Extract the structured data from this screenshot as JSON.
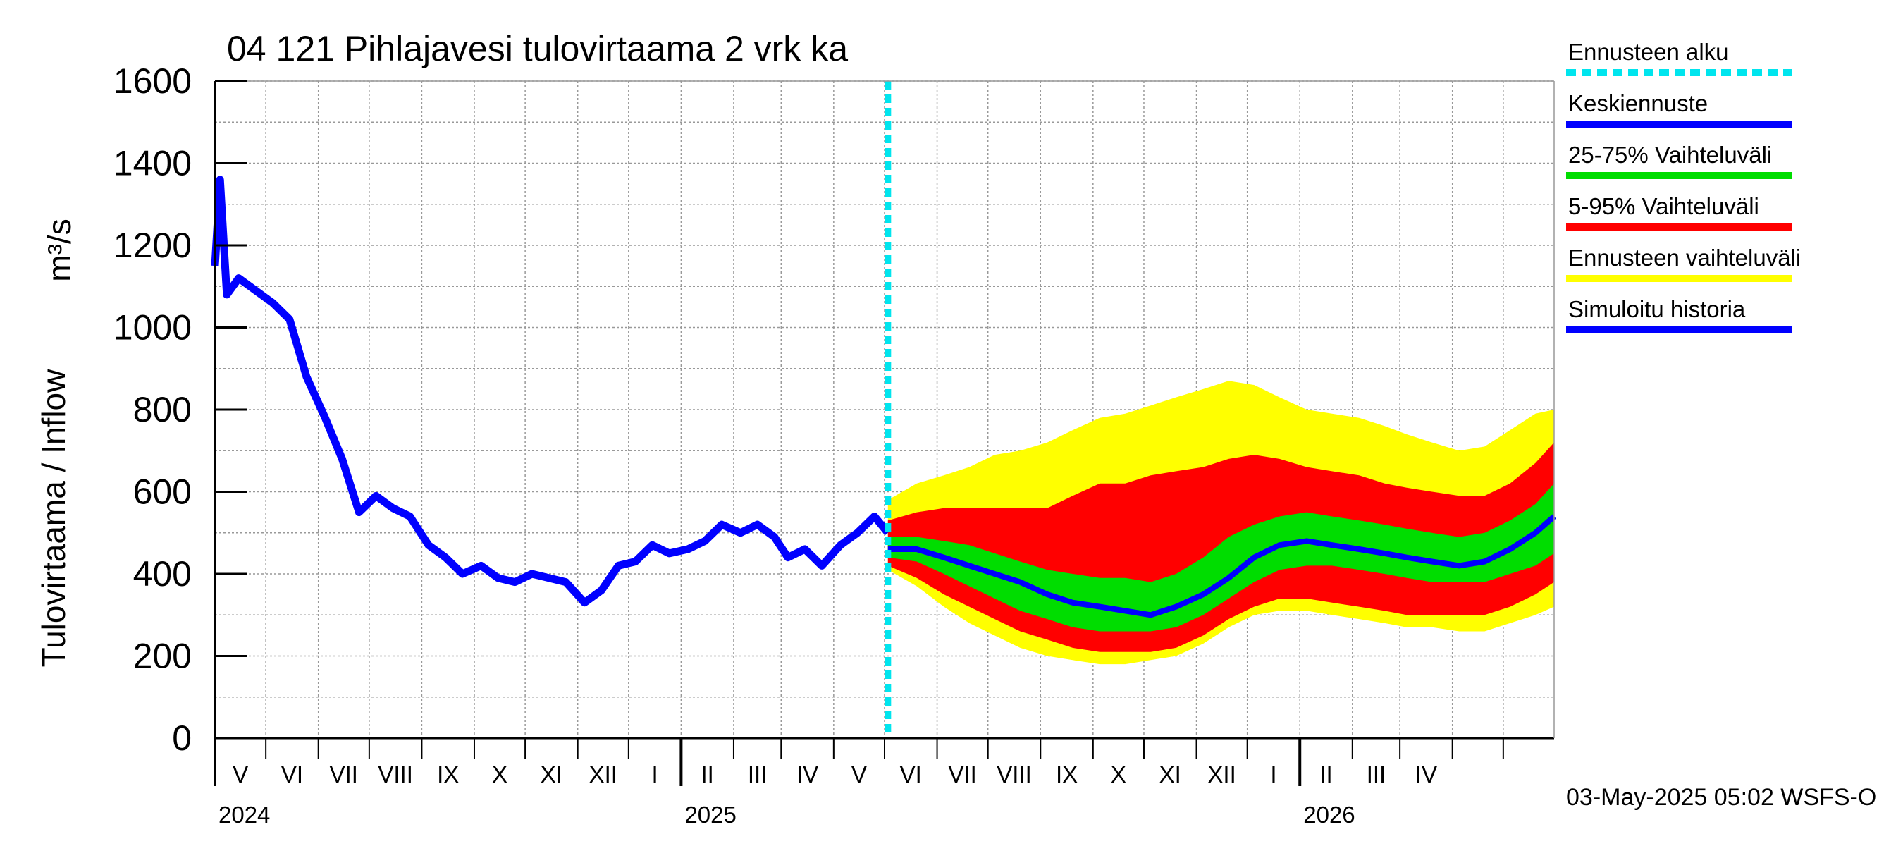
{
  "chart_data": {
    "type": "area",
    "title": "04 121 Pihlajavesi tulovirtaama 2 vrk ka",
    "ylabel": "Tulovirtaama / Inflow",
    "yunit": "m³/s",
    "ylim": [
      0,
      1600
    ],
    "yticks": [
      0,
      200,
      400,
      600,
      800,
      1000,
      1200,
      1400,
      1600
    ],
    "xlim": [
      "2024-04-01",
      "2026-05-31"
    ],
    "grid": true,
    "forecast_start": "2025-05-03",
    "month_labels": [
      "V",
      "VI",
      "VII",
      "VIII",
      "IX",
      "X",
      "XI",
      "XII",
      "I",
      "II",
      "III",
      "IV",
      "V",
      "VI",
      "VII",
      "VIII",
      "IX",
      "X",
      "XI",
      "XII",
      "I",
      "II",
      "III",
      "IV"
    ],
    "year_labels": [
      "2024",
      "2025",
      "2026"
    ],
    "timestamp": "03-May-2025 05:02 WSFS-O",
    "legend": [
      {
        "label": "Ennusteen alku",
        "color": "#00e5ee",
        "style": "dashed"
      },
      {
        "label": "Keskiennuste",
        "color": "#0000ff",
        "style": "solid"
      },
      {
        "label": "25-75% Vaihteluväli",
        "color": "#00dd00",
        "style": "solid"
      },
      {
        "label": "5-95% Vaihteluväli",
        "color": "#ff0000",
        "style": "solid"
      },
      {
        "label": "Ennusteen vaihteluväli",
        "color": "#ffff00",
        "style": "solid"
      },
      {
        "label": "Simuloitu historia",
        "color": "#0000ff",
        "style": "solid"
      }
    ],
    "colors": {
      "history": "#0000ff",
      "median": "#0000ff",
      "band_25_75": "#00dd00",
      "band_5_95": "#ff0000",
      "band_full": "#ffff00",
      "forecast_start": "#00e5ee"
    },
    "history": {
      "x": [
        "2024-04-01",
        "2024-04-04",
        "2024-04-08",
        "2024-04-15",
        "2024-04-25",
        "2024-05-05",
        "2024-05-15",
        "2024-05-25",
        "2024-06-05",
        "2024-06-15",
        "2024-06-25",
        "2024-07-05",
        "2024-07-15",
        "2024-07-25",
        "2024-08-05",
        "2024-08-15",
        "2024-08-25",
        "2024-09-05",
        "2024-09-15",
        "2024-09-25",
        "2024-10-05",
        "2024-10-15",
        "2024-10-25",
        "2024-11-05",
        "2024-11-15",
        "2024-11-25",
        "2024-12-05",
        "2024-12-15",
        "2024-12-25",
        "2025-01-05",
        "2025-01-15",
        "2025-01-25",
        "2025-02-05",
        "2025-02-15",
        "2025-02-25",
        "2025-03-05",
        "2025-03-15",
        "2025-03-25",
        "2025-04-05",
        "2025-04-15",
        "2025-04-25",
        "2025-05-03"
      ],
      "values": [
        1150,
        1360,
        1080,
        1120,
        1090,
        1060,
        1020,
        880,
        780,
        680,
        550,
        590,
        560,
        540,
        470,
        440,
        400,
        420,
        390,
        380,
        400,
        390,
        380,
        330,
        360,
        420,
        430,
        470,
        450,
        460,
        480,
        520,
        500,
        520,
        490,
        440,
        460,
        420,
        470,
        500,
        540,
        500
      ]
    },
    "forecast": {
      "x": [
        "2025-05-03",
        "2025-05-20",
        "2025-06-05",
        "2025-06-20",
        "2025-07-05",
        "2025-07-20",
        "2025-08-05",
        "2025-08-20",
        "2025-09-05",
        "2025-09-20",
        "2025-10-05",
        "2025-10-20",
        "2025-11-05",
        "2025-11-20",
        "2025-12-05",
        "2025-12-20",
        "2026-01-05",
        "2026-01-20",
        "2026-02-05",
        "2026-02-20",
        "2026-03-05",
        "2026-03-20",
        "2026-04-05",
        "2026-04-20",
        "2026-05-05",
        "2026-05-20",
        "2026-05-31"
      ],
      "median": [
        460,
        460,
        440,
        420,
        400,
        380,
        350,
        330,
        320,
        310,
        300,
        320,
        350,
        390,
        440,
        470,
        480,
        470,
        460,
        450,
        440,
        430,
        420,
        430,
        460,
        500,
        540
      ],
      "p25": [
        440,
        430,
        400,
        370,
        340,
        310,
        290,
        270,
        260,
        260,
        260,
        270,
        300,
        340,
        380,
        410,
        420,
        420,
        410,
        400,
        390,
        380,
        380,
        380,
        400,
        420,
        450
      ],
      "p75": [
        490,
        490,
        480,
        470,
        450,
        430,
        410,
        400,
        390,
        390,
        380,
        400,
        440,
        490,
        520,
        540,
        550,
        540,
        530,
        520,
        510,
        500,
        490,
        500,
        530,
        570,
        620
      ],
      "p5": [
        420,
        390,
        350,
        320,
        290,
        260,
        240,
        220,
        210,
        210,
        210,
        220,
        250,
        290,
        320,
        340,
        340,
        330,
        320,
        310,
        300,
        300,
        300,
        300,
        320,
        350,
        380
      ],
      "p95": [
        530,
        550,
        560,
        560,
        560,
        560,
        560,
        590,
        620,
        620,
        640,
        650,
        660,
        680,
        690,
        680,
        660,
        650,
        640,
        620,
        610,
        600,
        590,
        590,
        620,
        670,
        720
      ],
      "min": [
        410,
        370,
        320,
        280,
        250,
        220,
        200,
        190,
        180,
        180,
        190,
        200,
        230,
        270,
        300,
        310,
        310,
        300,
        290,
        280,
        270,
        270,
        260,
        260,
        280,
        300,
        320
      ],
      "max": [
        580,
        620,
        640,
        660,
        690,
        700,
        720,
        750,
        780,
        790,
        810,
        830,
        850,
        870,
        860,
        830,
        800,
        790,
        780,
        760,
        740,
        720,
        700,
        710,
        750,
        790,
        800
      ]
    }
  }
}
